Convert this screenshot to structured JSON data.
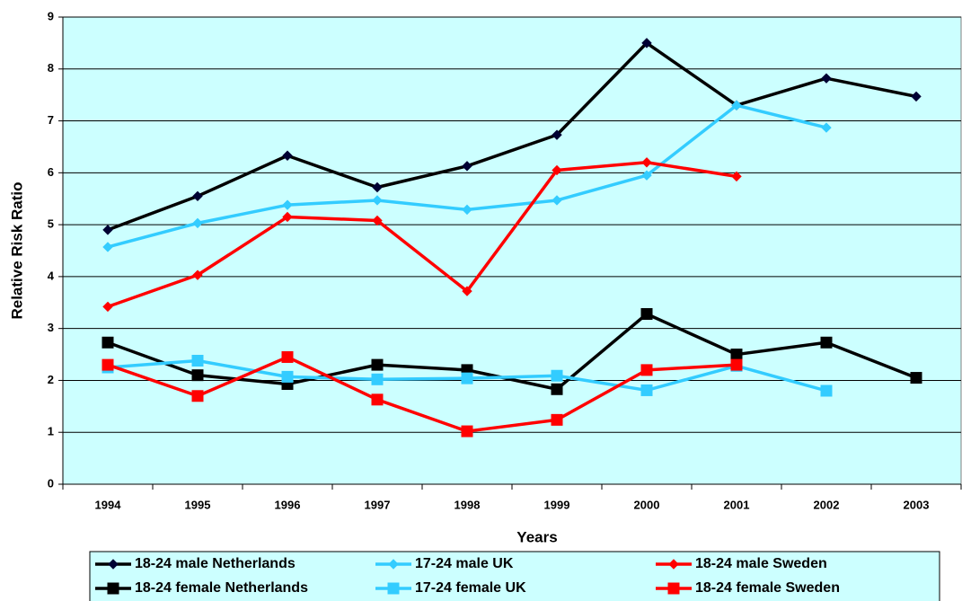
{
  "chart_data": {
    "type": "line",
    "xlabel": "Years",
    "ylabel": "Relative Risk Ratio",
    "categories": [
      "1994",
      "1995",
      "1996",
      "1997",
      "1998",
      "1999",
      "2000",
      "2001",
      "2002",
      "2003"
    ],
    "ylim": [
      0,
      9
    ],
    "yticks": [
      0,
      1,
      2,
      3,
      4,
      5,
      6,
      7,
      8,
      9
    ],
    "grid": true,
    "legend": "bottom",
    "background": "#ccffff",
    "series": [
      {
        "name": "18-24 male Netherlands",
        "color": "#000033",
        "marker": "diamond",
        "values": [
          4.9,
          5.55,
          6.33,
          5.72,
          6.13,
          6.73,
          8.5,
          7.3,
          7.82,
          7.47
        ]
      },
      {
        "name": "17-24 male UK",
        "color": "#33ccff",
        "marker": "diamond",
        "values": [
          4.57,
          5.03,
          5.38,
          5.47,
          5.29,
          5.47,
          5.95,
          7.3,
          6.87,
          null
        ]
      },
      {
        "name": "18-24 male Sweden",
        "color": "#ff0000",
        "marker": "diamond",
        "values": [
          3.42,
          4.03,
          5.15,
          5.08,
          3.72,
          6.05,
          6.2,
          5.93,
          null,
          null
        ]
      },
      {
        "name": "18-24 female Netherlands",
        "color": "#000000",
        "marker": "square",
        "values": [
          2.73,
          2.1,
          1.93,
          2.3,
          2.2,
          1.83,
          3.28,
          2.5,
          2.73,
          2.05
        ]
      },
      {
        "name": "17-24 female UK",
        "color": "#33ccff",
        "marker": "square",
        "values": [
          2.25,
          2.38,
          2.07,
          2.02,
          2.04,
          2.09,
          1.81,
          2.28,
          1.8,
          null
        ]
      },
      {
        "name": "18-24 female Sweden",
        "color": "#ff0000",
        "marker": "square",
        "values": [
          2.3,
          1.7,
          2.45,
          1.63,
          1.02,
          1.24,
          2.2,
          2.3,
          null,
          null
        ]
      }
    ]
  }
}
